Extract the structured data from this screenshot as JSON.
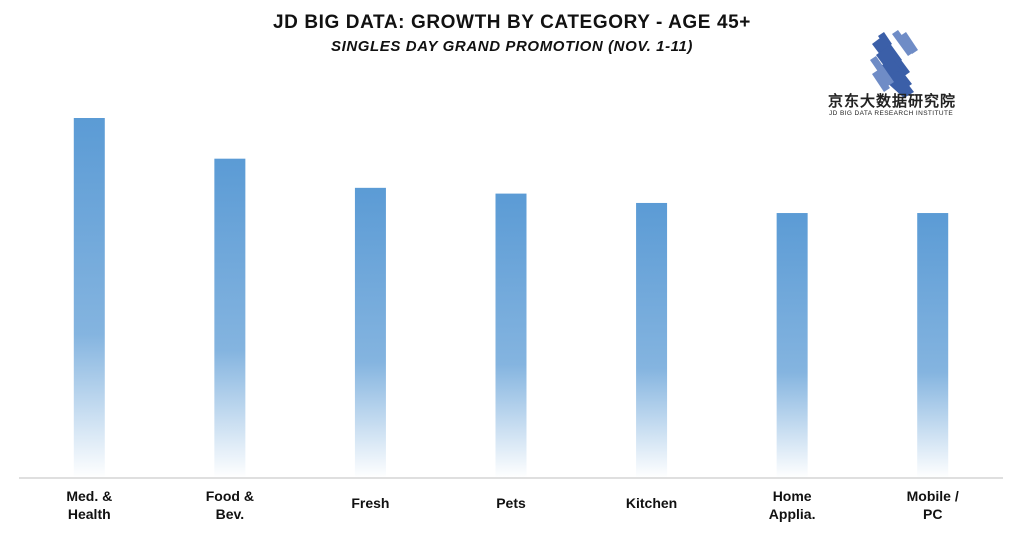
{
  "title": "JD BIG DATA: GROWTH BY CATEGORY - AGE 45+",
  "subtitle": "SINGLES DAY GRAND PROMOTION (NOV. 1-11)",
  "logo": {
    "name_cn": "京东大数据研究院",
    "name_en": "JD BIG DATA RESEARCH INSTITUTE",
    "icon": "jd-stripes-logo-icon",
    "color": "#3b5fa8"
  },
  "colors": {
    "bar_top": "#5b9bd5",
    "bar_bottom": "#ffffff",
    "axis": "#bfbfbf"
  },
  "chart_data": {
    "type": "bar",
    "title": "JD BIG DATA: GROWTH BY CATEGORY - AGE 45+",
    "subtitle": "SINGLES DAY GRAND PROMOTION (NOV. 1-11)",
    "categories": [
      [
        "Med. &",
        "Health"
      ],
      [
        "Food &",
        "Bev."
      ],
      [
        "Fresh"
      ],
      [
        "Pets"
      ],
      [
        "Kitchen"
      ],
      [
        "Home",
        "Applia."
      ],
      [
        "Mobile /",
        "PC"
      ]
    ],
    "values": [
      100,
      88.7,
      80.6,
      79.0,
      76.4,
      73.6,
      73.6
    ],
    "value_unit": "relative index (max = 100), no values shown on chart",
    "ylim": [
      0,
      100
    ],
    "grid": false,
    "legend": "none",
    "xlabel": "",
    "ylabel": ""
  }
}
